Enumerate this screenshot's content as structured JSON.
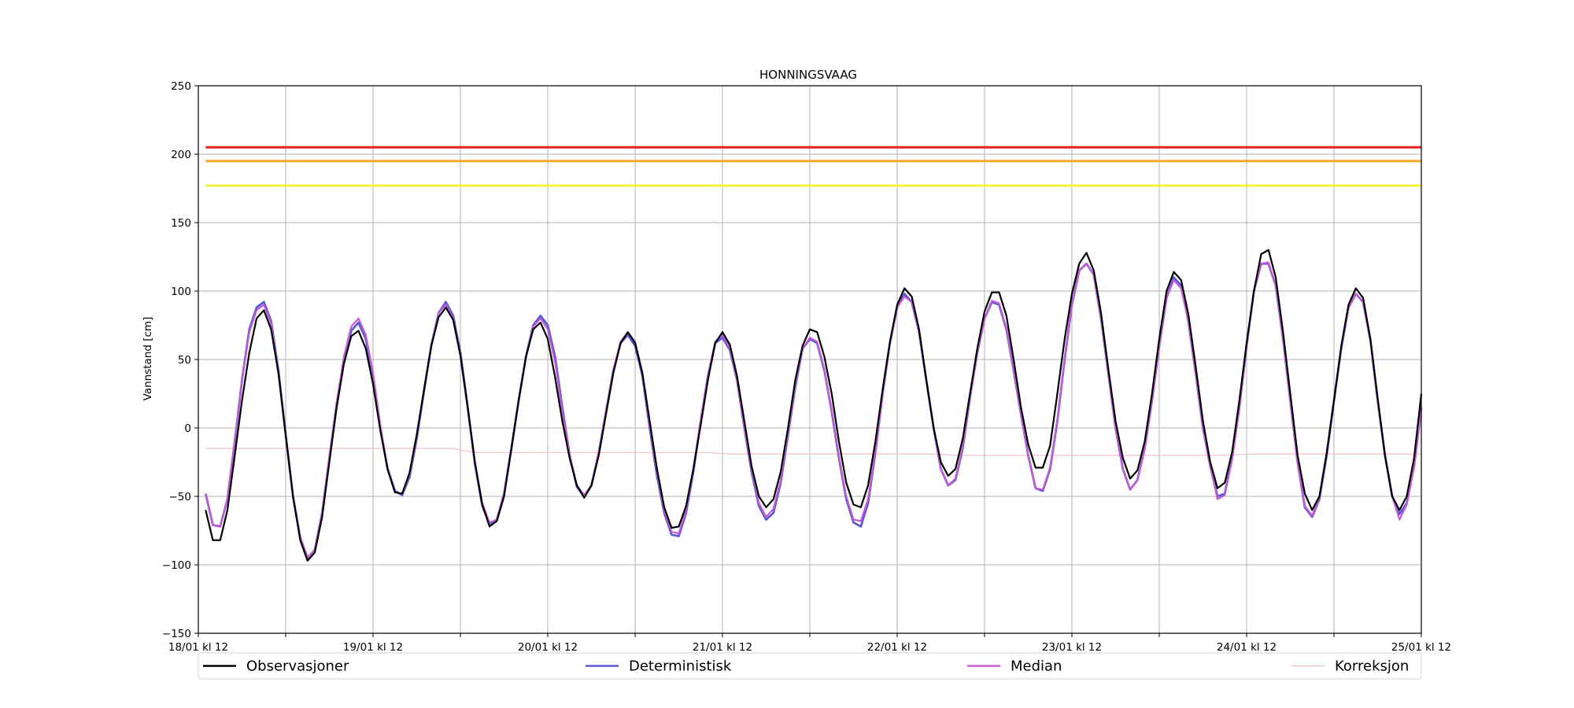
{
  "chart_data": {
    "type": "line",
    "title": "HONNINGSVAAG",
    "xlabel": "",
    "ylabel": "Vannstand [cm]",
    "ylim": [
      -150,
      250
    ],
    "yticks": [
      -150,
      -100,
      -50,
      0,
      50,
      100,
      150,
      200,
      250
    ],
    "ytick_labels": [
      "−150",
      "−100",
      "−50",
      "0",
      "50",
      "100",
      "150",
      "200",
      "250"
    ],
    "x_start": "18/01 kl 12",
    "x_end": "25/01 kl 12",
    "x_unit": "hours since 18/01 kl 12",
    "xlim": [
      0,
      168
    ],
    "xtick_labels": [
      "18/01 kl 12",
      "19/01 kl 12",
      "20/01 kl 12",
      "21/01 kl 12",
      "22/01 kl 12",
      "23/01 kl 12",
      "24/01 kl 12",
      "25/01 kl 12"
    ],
    "grid": true,
    "legend_placement": "bottom",
    "thresholds": [
      {
        "value": 205,
        "color": "#e8231f"
      },
      {
        "value": 195,
        "color": "#f2a829"
      },
      {
        "value": 177,
        "color": "#f5f03a"
      }
    ],
    "series": [
      {
        "name": "Observasjoner",
        "color": "#000000",
        "x": [
          1,
          2,
          3,
          4,
          5,
          6,
          7,
          8,
          9,
          10,
          11,
          12,
          13,
          14,
          15,
          16,
          17,
          18,
          19,
          20,
          21,
          22,
          23,
          24,
          25,
          26,
          27,
          28,
          29,
          30,
          31,
          32,
          33,
          34,
          35,
          36,
          37,
          38,
          39,
          40,
          41,
          42,
          43,
          44,
          45,
          46,
          47,
          48,
          49,
          50,
          51,
          52,
          53,
          54,
          55,
          56,
          57,
          58,
          59,
          60,
          61,
          62,
          63,
          64,
          65,
          66,
          67,
          68,
          69,
          70,
          71,
          72,
          73,
          74,
          75,
          76,
          77,
          78,
          79,
          80,
          81,
          82,
          83,
          84,
          85,
          86,
          87,
          88,
          89,
          90,
          91,
          92,
          93,
          94,
          95,
          96,
          97,
          98,
          99,
          100,
          101,
          102,
          103,
          104,
          105,
          106,
          107,
          108,
          109,
          110,
          111,
          112,
          113,
          114,
          115,
          116,
          117,
          118,
          119,
          120,
          121,
          122,
          123,
          124,
          125,
          126,
          127,
          128,
          129,
          130,
          131,
          132,
          133,
          134,
          135,
          136,
          137,
          138,
          139,
          140,
          141,
          142,
          143,
          144,
          145,
          146,
          147,
          148,
          149,
          150,
          151,
          152,
          153,
          154,
          155,
          156,
          157,
          158,
          159,
          160,
          161,
          162,
          163,
          164,
          165,
          166,
          167,
          168
        ],
        "values": [
          -60,
          -82,
          -82,
          -60,
          -20,
          20,
          55,
          80,
          86,
          72,
          40,
          -5,
          -50,
          -82,
          -97,
          -91,
          -65,
          -25,
          15,
          47,
          67,
          71,
          58,
          32,
          -2,
          -30,
          -47,
          -48,
          -33,
          -5,
          28,
          60,
          81,
          88,
          79,
          53,
          15,
          -25,
          -56,
          -72,
          -68,
          -50,
          -15,
          20,
          52,
          72,
          77,
          65,
          37,
          5,
          -22,
          -42,
          -51,
          -42,
          -20,
          10,
          40,
          62,
          70,
          62,
          40,
          5,
          -30,
          -58,
          -73,
          -72,
          -57,
          -30,
          2,
          35,
          62,
          70,
          61,
          38,
          5,
          -28,
          -50,
          -58,
          -52,
          -32,
          0,
          35,
          60,
          72,
          70,
          52,
          25,
          -10,
          -40,
          -56,
          -58,
          -42,
          -10,
          28,
          63,
          90,
          102,
          96,
          72,
          35,
          0,
          -25,
          -35,
          -30,
          -8,
          25,
          58,
          85,
          99,
          99,
          82,
          50,
          15,
          -12,
          -29,
          -29,
          -13,
          25,
          65,
          98,
          120,
          128,
          115,
          84,
          43,
          5,
          -22,
          -37,
          -31,
          -10,
          25,
          65,
          100,
          114,
          108,
          83,
          45,
          5,
          -25,
          -44,
          -40,
          -18,
          20,
          62,
          100,
          127,
          130,
          110,
          70,
          25,
          -20,
          -48,
          -60,
          -50,
          -18,
          20,
          60,
          90,
          102,
          95,
          65,
          22,
          -20,
          -50,
          -60,
          -50,
          -22,
          25
        ]
      },
      {
        "name": "Deterministisk",
        "color": "#5a5ad4",
        "x": [
          1,
          2,
          3,
          4,
          5,
          6,
          7,
          8,
          9,
          10,
          11,
          12,
          13,
          14,
          15,
          16,
          17,
          18,
          19,
          20,
          21,
          22,
          23,
          24,
          25,
          26,
          27,
          28,
          29,
          30,
          31,
          32,
          33,
          34,
          35,
          36,
          37,
          38,
          39,
          40,
          41,
          42,
          43,
          44,
          45,
          46,
          47,
          48,
          49,
          50,
          51,
          52,
          53,
          54,
          55,
          56,
          57,
          58,
          59,
          60,
          61,
          62,
          63,
          64,
          65,
          66,
          67,
          68,
          69,
          70,
          71,
          72,
          73,
          74,
          75,
          76,
          77,
          78,
          79,
          80,
          81,
          82,
          83,
          84,
          85,
          86,
          87,
          88,
          89,
          90,
          91,
          92,
          93,
          94,
          95,
          96,
          97,
          98,
          99,
          100,
          101,
          102,
          103,
          104,
          105,
          106,
          107,
          108,
          109,
          110,
          111,
          112,
          113,
          114,
          115,
          116,
          117,
          118,
          119,
          120,
          121,
          122,
          123,
          124,
          125,
          126,
          127,
          128,
          129,
          130,
          131,
          132,
          133,
          134,
          135,
          136,
          137,
          138,
          139,
          140,
          141,
          142,
          143,
          144,
          145,
          146,
          147,
          148,
          149,
          150,
          151,
          152,
          153,
          154,
          155,
          156,
          157,
          158,
          159,
          160,
          161,
          162,
          163,
          164,
          165,
          166,
          167,
          168
        ],
        "values": [
          -48,
          -71,
          -72,
          -52,
          -10,
          35,
          72,
          88,
          92,
          78,
          42,
          -5,
          -50,
          -80,
          -95,
          -89,
          -62,
          -22,
          18,
          50,
          71,
          77,
          65,
          38,
          0,
          -30,
          -46,
          -49,
          -36,
          -8,
          27,
          60,
          84,
          92,
          82,
          55,
          15,
          -27,
          -57,
          -70,
          -67,
          -48,
          -15,
          20,
          52,
          75,
          82,
          75,
          52,
          15,
          -20,
          -43,
          -50,
          -42,
          -18,
          12,
          42,
          62,
          68,
          60,
          38,
          0,
          -35,
          -62,
          -78,
          -79,
          -62,
          -32,
          5,
          38,
          62,
          66,
          57,
          35,
          0,
          -32,
          -57,
          -67,
          -62,
          -40,
          -5,
          30,
          58,
          65,
          62,
          42,
          12,
          -22,
          -52,
          -69,
          -72,
          -55,
          -18,
          25,
          62,
          88,
          98,
          92,
          70,
          35,
          0,
          -30,
          -42,
          -38,
          -15,
          22,
          55,
          80,
          92,
          90,
          72,
          42,
          10,
          -20,
          -44,
          -46,
          -30,
          5,
          50,
          90,
          115,
          120,
          112,
          80,
          40,
          0,
          -30,
          -45,
          -38,
          -15,
          20,
          60,
          95,
          110,
          104,
          78,
          40,
          0,
          -28,
          -50,
          -48,
          -22,
          15,
          60,
          100,
          120,
          120,
          104,
          65,
          20,
          -25,
          -58,
          -65,
          -52,
          -20,
          20,
          58,
          88,
          98,
          92,
          64,
          20,
          -20,
          -50,
          -63,
          -55,
          -28,
          15
        ]
      },
      {
        "name": "Median",
        "color": "#c659d4",
        "x": [
          1,
          2,
          3,
          4,
          5,
          6,
          7,
          8,
          9,
          10,
          11,
          12,
          13,
          14,
          15,
          16,
          17,
          18,
          19,
          20,
          21,
          22,
          23,
          24,
          25,
          26,
          27,
          28,
          29,
          30,
          31,
          32,
          33,
          34,
          35,
          36,
          37,
          38,
          39,
          40,
          41,
          42,
          43,
          44,
          45,
          46,
          47,
          48,
          49,
          50,
          51,
          52,
          53,
          54,
          55,
          56,
          57,
          58,
          59,
          60,
          61,
          62,
          63,
          64,
          65,
          66,
          67,
          68,
          69,
          70,
          71,
          72,
          73,
          74,
          75,
          76,
          77,
          78,
          79,
          80,
          81,
          82,
          83,
          84,
          85,
          86,
          87,
          88,
          89,
          90,
          91,
          92,
          93,
          94,
          95,
          96,
          97,
          98,
          99,
          100,
          101,
          102,
          103,
          104,
          105,
          106,
          107,
          108,
          109,
          110,
          111,
          112,
          113,
          114,
          115,
          116,
          117,
          118,
          119,
          120,
          121,
          122,
          123,
          124,
          125,
          126,
          127,
          128,
          129,
          130,
          131,
          132,
          133,
          134,
          135,
          136,
          137,
          138,
          139,
          140,
          141,
          142,
          143,
          144,
          145,
          146,
          147,
          148,
          149,
          150,
          151,
          152,
          153,
          154,
          155,
          156,
          157,
          158,
          159,
          160,
          161,
          162,
          163,
          164,
          165,
          166,
          167,
          168
        ],
        "values": [
          -48,
          -71,
          -72,
          -52,
          -10,
          35,
          70,
          86,
          90,
          76,
          40,
          -5,
          -50,
          -80,
          -95,
          -89,
          -62,
          -22,
          18,
          52,
          74,
          80,
          68,
          40,
          2,
          -30,
          -47,
          -48,
          -34,
          -6,
          28,
          60,
          84,
          90,
          80,
          53,
          14,
          -27,
          -55,
          -69,
          -67,
          -48,
          -14,
          20,
          52,
          74,
          80,
          72,
          48,
          12,
          -20,
          -42,
          -49,
          -42,
          -18,
          12,
          42,
          63,
          70,
          63,
          40,
          2,
          -32,
          -60,
          -76,
          -77,
          -60,
          -30,
          6,
          38,
          63,
          68,
          58,
          36,
          0,
          -30,
          -55,
          -65,
          -59,
          -38,
          -3,
          32,
          58,
          66,
          63,
          43,
          13,
          -21,
          -50,
          -67,
          -68,
          -52,
          -17,
          25,
          62,
          88,
          96,
          92,
          70,
          35,
          0,
          -30,
          -42,
          -37,
          -14,
          22,
          55,
          80,
          93,
          91,
          73,
          43,
          10,
          -20,
          -44,
          -45,
          -29,
          6,
          50,
          90,
          115,
          120,
          112,
          80,
          40,
          0,
          -30,
          -45,
          -38,
          -15,
          20,
          60,
          95,
          108,
          102,
          78,
          40,
          0,
          -28,
          -52,
          -49,
          -23,
          14,
          60,
          100,
          120,
          121,
          104,
          65,
          20,
          -25,
          -57,
          -64,
          -51,
          -19,
          20,
          58,
          88,
          98,
          92,
          64,
          20,
          -20,
          -50,
          -67,
          -56,
          -28,
          15
        ]
      },
      {
        "name": "Korreksjon",
        "color": "#f2c0c0",
        "x": [
          1,
          35,
          38,
          70,
          73,
          100,
          105,
          140,
          145,
          168
        ],
        "values": [
          -15,
          -15,
          -18,
          -18,
          -19,
          -19,
          -20,
          -20,
          -19,
          -19
        ]
      }
    ]
  }
}
